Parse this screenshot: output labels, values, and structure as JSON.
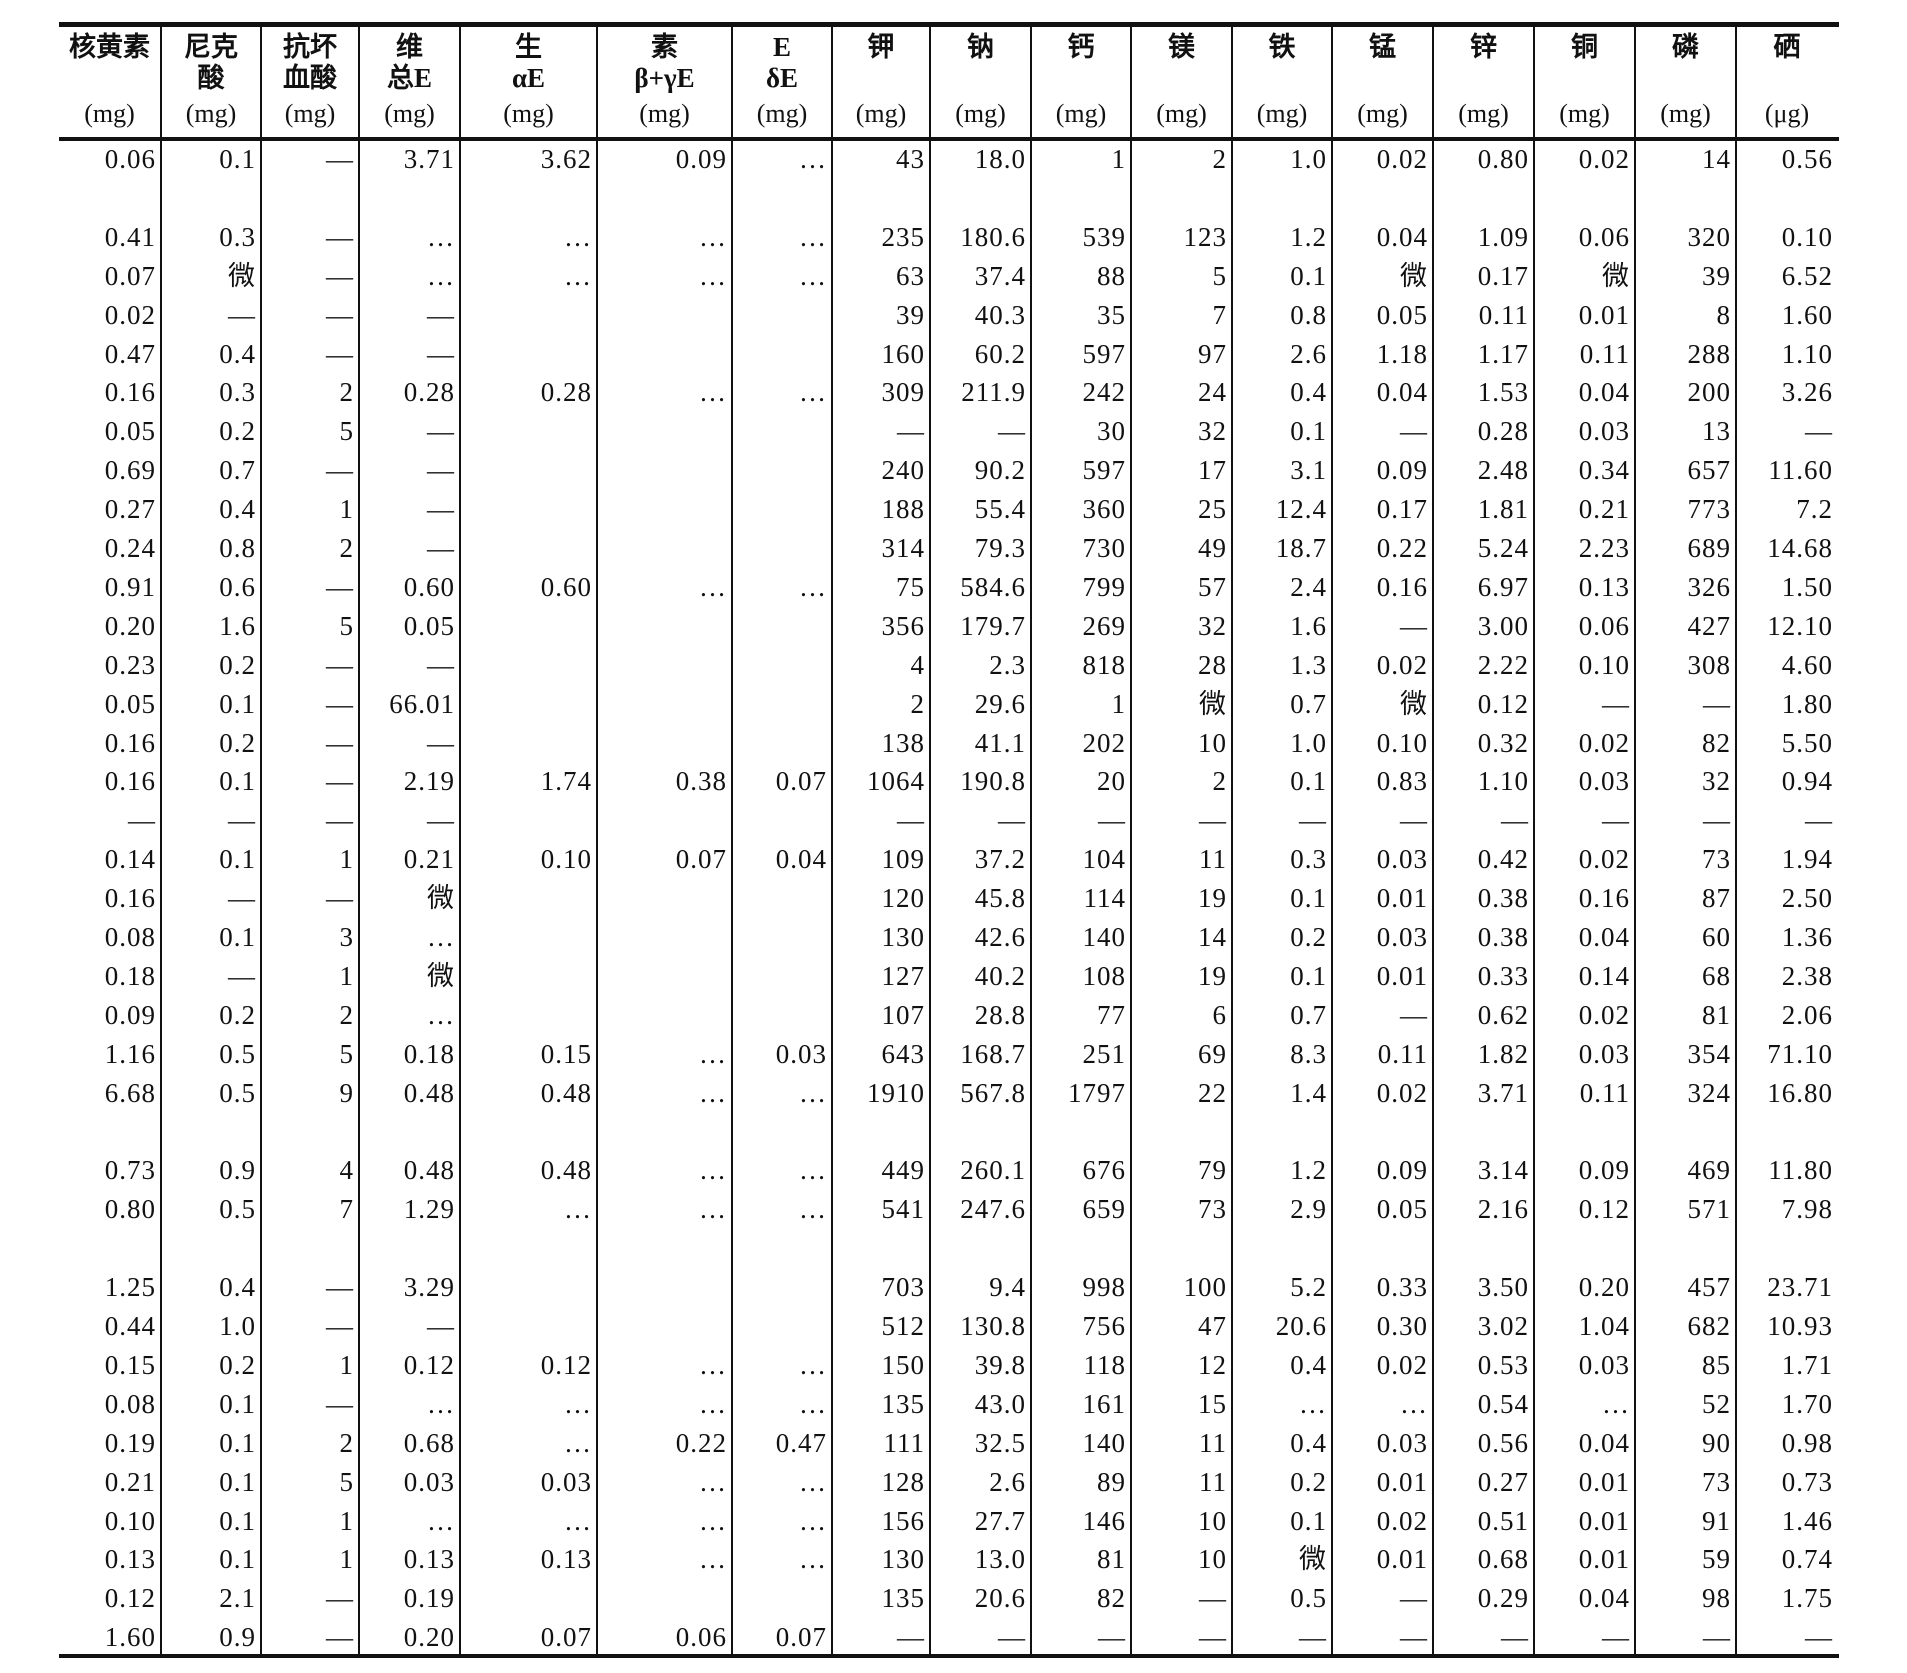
{
  "table": {
    "headers": [
      {
        "l1": "核黄素",
        "l2": "",
        "unit": "(mg)"
      },
      {
        "l1": "尼克",
        "l2": "酸",
        "unit": "(mg)"
      },
      {
        "l1": "抗坏",
        "l2": "血酸",
        "unit": "(mg)"
      },
      {
        "l1": "维",
        "l2": "总E",
        "unit": "(mg)"
      },
      {
        "l1": "生",
        "l2": "αE",
        "unit": "(mg)"
      },
      {
        "l1": "素",
        "l2": "β+γE",
        "unit": "(mg)"
      },
      {
        "l1": "E",
        "l2": "δE",
        "unit": "(mg)"
      },
      {
        "l1": "钾",
        "l2": "",
        "unit": "(mg)"
      },
      {
        "l1": "钠",
        "l2": "",
        "unit": "(mg)"
      },
      {
        "l1": "钙",
        "l2": "",
        "unit": "(mg)"
      },
      {
        "l1": "镁",
        "l2": "",
        "unit": "(mg)"
      },
      {
        "l1": "铁",
        "l2": "",
        "unit": "(mg)"
      },
      {
        "l1": "锰",
        "l2": "",
        "unit": "(mg)"
      },
      {
        "l1": "锌",
        "l2": "",
        "unit": "(mg)"
      },
      {
        "l1": "铜",
        "l2": "",
        "unit": "(mg)"
      },
      {
        "l1": "磷",
        "l2": "",
        "unit": "(mg)"
      },
      {
        "l1": "硒",
        "l2": "",
        "unit": "(μg)"
      }
    ],
    "rows": [
      [
        "0.06",
        "0.1",
        "—",
        "3.71",
        "3.62",
        "0.09",
        "…",
        "43",
        "18.0",
        "1",
        "2",
        "1.0",
        "0.02",
        "0.80",
        "0.02",
        "14",
        "0.56"
      ],
      null,
      [
        "0.41",
        "0.3",
        "—",
        "…",
        "…",
        "…",
        "…",
        "235",
        "180.6",
        "539",
        "123",
        "1.2",
        "0.04",
        "1.09",
        "0.06",
        "320",
        "0.10"
      ],
      [
        "0.07",
        "微",
        "—",
        "…",
        "…",
        "…",
        "…",
        "63",
        "37.4",
        "88",
        "5",
        "0.1",
        "微",
        "0.17",
        "微",
        "39",
        "6.52"
      ],
      [
        "0.02",
        "—",
        "—",
        "—",
        "",
        "",
        "",
        "39",
        "40.3",
        "35",
        "7",
        "0.8",
        "0.05",
        "0.11",
        "0.01",
        "8",
        "1.60"
      ],
      [
        "0.47",
        "0.4",
        "—",
        "—",
        "",
        "",
        "",
        "160",
        "60.2",
        "597",
        "97",
        "2.6",
        "1.18",
        "1.17",
        "0.11",
        "288",
        "1.10"
      ],
      [
        "0.16",
        "0.3",
        "2",
        "0.28",
        "0.28",
        "…",
        "…",
        "309",
        "211.9",
        "242",
        "24",
        "0.4",
        "0.04",
        "1.53",
        "0.04",
        "200",
        "3.26"
      ],
      [
        "0.05",
        "0.2",
        "5",
        "—",
        "",
        "",
        "",
        "—",
        "—",
        "30",
        "32",
        "0.1",
        "—",
        "0.28",
        "0.03",
        "13",
        "—"
      ],
      [
        "0.69",
        "0.7",
        "—",
        "—",
        "",
        "",
        "",
        "240",
        "90.2",
        "597",
        "17",
        "3.1",
        "0.09",
        "2.48",
        "0.34",
        "657",
        "11.60"
      ],
      [
        "0.27",
        "0.4",
        "1",
        "—",
        "",
        "",
        "",
        "188",
        "55.4",
        "360",
        "25",
        "12.4",
        "0.17",
        "1.81",
        "0.21",
        "773",
        "7.2"
      ],
      [
        "0.24",
        "0.8",
        "2",
        "—",
        "",
        "",
        "",
        "314",
        "79.3",
        "730",
        "49",
        "18.7",
        "0.22",
        "5.24",
        "2.23",
        "689",
        "14.68"
      ],
      [
        "0.91",
        "0.6",
        "—",
        "0.60",
        "0.60",
        "…",
        "…",
        "75",
        "584.6",
        "799",
        "57",
        "2.4",
        "0.16",
        "6.97",
        "0.13",
        "326",
        "1.50"
      ],
      [
        "0.20",
        "1.6",
        "5",
        "0.05",
        "",
        "",
        "",
        "356",
        "179.7",
        "269",
        "32",
        "1.6",
        "—",
        "3.00",
        "0.06",
        "427",
        "12.10"
      ],
      [
        "0.23",
        "0.2",
        "—",
        "—",
        "",
        "",
        "",
        "4",
        "2.3",
        "818",
        "28",
        "1.3",
        "0.02",
        "2.22",
        "0.10",
        "308",
        "4.60"
      ],
      [
        "0.05",
        "0.1",
        "—",
        "66.01",
        "",
        "",
        "",
        "2",
        "29.6",
        "1",
        "微",
        "0.7",
        "微",
        "0.12",
        "—",
        "—",
        "1.80"
      ],
      [
        "0.16",
        "0.2",
        "—",
        "—",
        "",
        "",
        "",
        "138",
        "41.1",
        "202",
        "10",
        "1.0",
        "0.10",
        "0.32",
        "0.02",
        "82",
        "5.50"
      ],
      [
        "0.16",
        "0.1",
        "—",
        "2.19",
        "1.74",
        "0.38",
        "0.07",
        "1064",
        "190.8",
        "20",
        "2",
        "0.1",
        "0.83",
        "1.10",
        "0.03",
        "32",
        "0.94"
      ],
      [
        "—",
        "—",
        "—",
        "—",
        "",
        "",
        "",
        "—",
        "—",
        "—",
        "—",
        "—",
        "—",
        "—",
        "—",
        "—",
        "—"
      ],
      [
        "0.14",
        "0.1",
        "1",
        "0.21",
        "0.10",
        "0.07",
        "0.04",
        "109",
        "37.2",
        "104",
        "11",
        "0.3",
        "0.03",
        "0.42",
        "0.02",
        "73",
        "1.94"
      ],
      [
        "0.16",
        "—",
        "—",
        "微",
        "",
        "",
        "",
        "120",
        "45.8",
        "114",
        "19",
        "0.1",
        "0.01",
        "0.38",
        "0.16",
        "87",
        "2.50"
      ],
      [
        "0.08",
        "0.1",
        "3",
        "…",
        "",
        "",
        "",
        "130",
        "42.6",
        "140",
        "14",
        "0.2",
        "0.03",
        "0.38",
        "0.04",
        "60",
        "1.36"
      ],
      [
        "0.18",
        "—",
        "1",
        "微",
        "",
        "",
        "",
        "127",
        "40.2",
        "108",
        "19",
        "0.1",
        "0.01",
        "0.33",
        "0.14",
        "68",
        "2.38"
      ],
      [
        "0.09",
        "0.2",
        "2",
        "…",
        "",
        "",
        "",
        "107",
        "28.8",
        "77",
        "6",
        "0.7",
        "—",
        "0.62",
        "0.02",
        "81",
        "2.06"
      ],
      [
        "1.16",
        "0.5",
        "5",
        "0.18",
        "0.15",
        "…",
        "0.03",
        "643",
        "168.7",
        "251",
        "69",
        "8.3",
        "0.11",
        "1.82",
        "0.03",
        "354",
        "71.10"
      ],
      [
        "6.68",
        "0.5",
        "9",
        "0.48",
        "0.48",
        "…",
        "…",
        "1910",
        "567.8",
        "1797",
        "22",
        "1.4",
        "0.02",
        "3.71",
        "0.11",
        "324",
        "16.80"
      ],
      null,
      [
        "0.73",
        "0.9",
        "4",
        "0.48",
        "0.48",
        "…",
        "…",
        "449",
        "260.1",
        "676",
        "79",
        "1.2",
        "0.09",
        "3.14",
        "0.09",
        "469",
        "11.80"
      ],
      [
        "0.80",
        "0.5",
        "7",
        "1.29",
        "…",
        "…",
        "…",
        "541",
        "247.6",
        "659",
        "73",
        "2.9",
        "0.05",
        "2.16",
        "0.12",
        "571",
        "7.98"
      ],
      null,
      [
        "1.25",
        "0.4",
        "—",
        "3.29",
        "",
        "",
        "",
        "703",
        "9.4",
        "998",
        "100",
        "5.2",
        "0.33",
        "3.50",
        "0.20",
        "457",
        "23.71"
      ],
      [
        "0.44",
        "1.0",
        "—",
        "—",
        "",
        "",
        "",
        "512",
        "130.8",
        "756",
        "47",
        "20.6",
        "0.30",
        "3.02",
        "1.04",
        "682",
        "10.93"
      ],
      [
        "0.15",
        "0.2",
        "1",
        "0.12",
        "0.12",
        "…",
        "…",
        "150",
        "39.8",
        "118",
        "12",
        "0.4",
        "0.02",
        "0.53",
        "0.03",
        "85",
        "1.71"
      ],
      [
        "0.08",
        "0.1",
        "—",
        "…",
        "…",
        "…",
        "…",
        "135",
        "43.0",
        "161",
        "15",
        "…",
        "…",
        "0.54",
        "…",
        "52",
        "1.70"
      ],
      [
        "0.19",
        "0.1",
        "2",
        "0.68",
        "…",
        "0.22",
        "0.47",
        "111",
        "32.5",
        "140",
        "11",
        "0.4",
        "0.03",
        "0.56",
        "0.04",
        "90",
        "0.98"
      ],
      [
        "0.21",
        "0.1",
        "5",
        "0.03",
        "0.03",
        "…",
        "…",
        "128",
        "2.6",
        "89",
        "11",
        "0.2",
        "0.01",
        "0.27",
        "0.01",
        "73",
        "0.73"
      ],
      [
        "0.10",
        "0.1",
        "1",
        "…",
        "…",
        "…",
        "…",
        "156",
        "27.7",
        "146",
        "10",
        "0.1",
        "0.02",
        "0.51",
        "0.01",
        "91",
        "1.46"
      ],
      [
        "0.13",
        "0.1",
        "1",
        "0.13",
        "0.13",
        "…",
        "…",
        "130",
        "13.0",
        "81",
        "10",
        "微",
        "0.01",
        "0.68",
        "0.01",
        "59",
        "0.74"
      ],
      [
        "0.12",
        "2.1",
        "—",
        "0.19",
        "",
        "",
        "",
        "135",
        "20.6",
        "82",
        "—",
        "0.5",
        "—",
        "0.29",
        "0.04",
        "98",
        "1.75"
      ],
      [
        "1.60",
        "0.9",
        "—",
        "0.20",
        "0.07",
        "0.06",
        "0.07",
        "—",
        "—",
        "—",
        "—",
        "—",
        "—",
        "—",
        "—",
        "—",
        "—"
      ]
    ]
  }
}
